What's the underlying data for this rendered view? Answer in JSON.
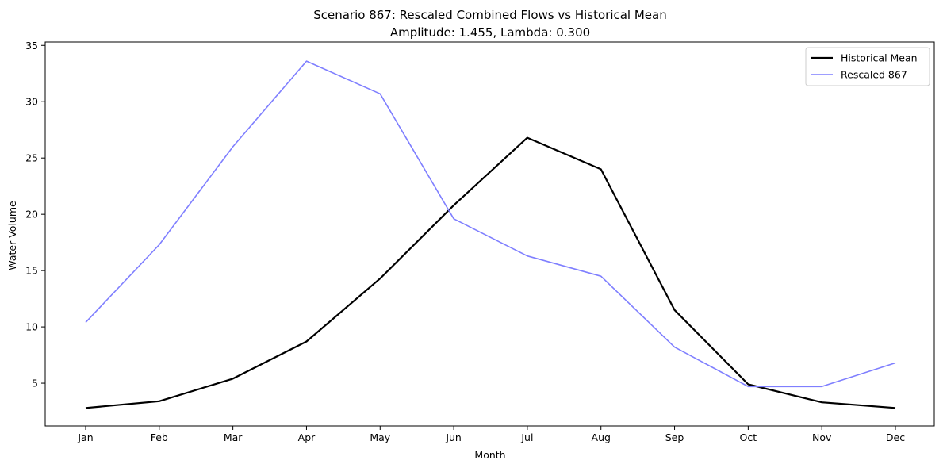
{
  "chart_data": {
    "type": "line",
    "title": "Scenario 867: Rescaled Combined Flows vs Historical Mean",
    "subtitle": "Amplitude: 1.455, Lambda: 0.300",
    "xlabel": "Month",
    "ylabel": "Water Volume",
    "categories": [
      "Jan",
      "Feb",
      "Mar",
      "Apr",
      "May",
      "Jun",
      "Jul",
      "Aug",
      "Sep",
      "Oct",
      "Nov",
      "Dec"
    ],
    "ylim": [
      1.2,
      35.3
    ],
    "yticks": [
      5,
      10,
      15,
      20,
      25,
      30,
      35
    ],
    "grid": false,
    "legend_position": "top-right",
    "series": [
      {
        "name": "Historical Mean",
        "color": "#000000",
        "values": [
          2.8,
          3.4,
          5.4,
          8.7,
          14.3,
          20.8,
          26.8,
          24.0,
          11.5,
          4.9,
          3.3,
          2.8
        ]
      },
      {
        "name": "Rescaled 867",
        "color": "#7f7fff",
        "values": [
          10.4,
          17.3,
          26.0,
          33.6,
          30.7,
          19.6,
          16.3,
          14.5,
          8.2,
          4.7,
          4.7,
          6.8
        ]
      }
    ]
  }
}
